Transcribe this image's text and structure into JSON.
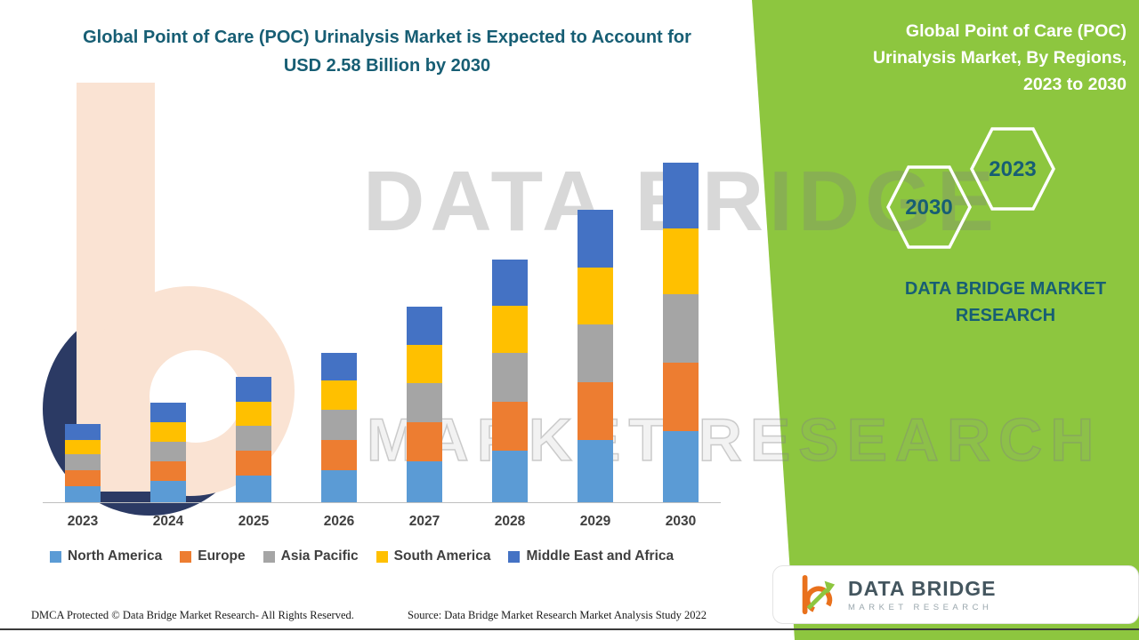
{
  "right_panel": {
    "title": "Global Point of Care (POC) Urinalysis Market, By Regions, 2023 to 2030",
    "hexagons": [
      {
        "year": "2030"
      },
      {
        "year": "2023"
      }
    ],
    "brand_text": "DATA BRIDGE MARKET RESEARCH",
    "background_color": "#8DC63F",
    "text_color": "#FFFFFF",
    "accent_text_color": "#175E74"
  },
  "watermark": {
    "line1": "DATA BRIDGE",
    "line2": "MARKET RESEARCH"
  },
  "logo_card": {
    "brand": "DATA BRIDGE",
    "sub_brand": "MARKET RESEARCH"
  },
  "footer": {
    "dmca": "DMCA Protected © Data Bridge Market Research- All Rights Reserved.",
    "source": "Source: Data Bridge Market Research Market Analysis Study 2022"
  },
  "colors": {
    "title_teal": "#175E74",
    "panel_green": "#8DC63F",
    "axis_label_gray": "#3F3F3F"
  },
  "chart_data": {
    "type": "bar",
    "stacked": true,
    "title": "Global Point of Care (POC) Urinalysis Market is Expected to Account for USD 2.58 Billion by 2030",
    "unit": "USD Billion",
    "highlight_value": "USD 2.58 Billion by 2030",
    "categories": [
      "2023",
      "2024",
      "2025",
      "2026",
      "2027",
      "2028",
      "2029",
      "2030"
    ],
    "series": [
      {
        "name": "North America",
        "color": "#5B9BD5",
        "values": [
          0.12,
          0.16,
          0.2,
          0.24,
          0.31,
          0.39,
          0.47,
          0.54
        ]
      },
      {
        "name": "Europe",
        "color": "#ED7D31",
        "values": [
          0.12,
          0.15,
          0.19,
          0.23,
          0.3,
          0.37,
          0.44,
          0.52
        ]
      },
      {
        "name": "Asia Pacific",
        "color": "#A5A5A5",
        "values": [
          0.12,
          0.15,
          0.19,
          0.23,
          0.3,
          0.37,
          0.44,
          0.52
        ]
      },
      {
        "name": "South America",
        "color": "#FFC000",
        "values": [
          0.11,
          0.15,
          0.18,
          0.22,
          0.29,
          0.36,
          0.43,
          0.5
        ]
      },
      {
        "name": "Middle East and Africa",
        "color": "#4472C4",
        "values": [
          0.12,
          0.15,
          0.19,
          0.21,
          0.29,
          0.35,
          0.44,
          0.5
        ]
      }
    ],
    "totals_estimated": [
      0.59,
      0.76,
      0.95,
      1.13,
      1.49,
      1.84,
      2.22,
      2.58
    ],
    "ylim": [
      0,
      3.0
    ],
    "gridlines": false,
    "y_axis_visible": false,
    "legend_position": "bottom"
  }
}
